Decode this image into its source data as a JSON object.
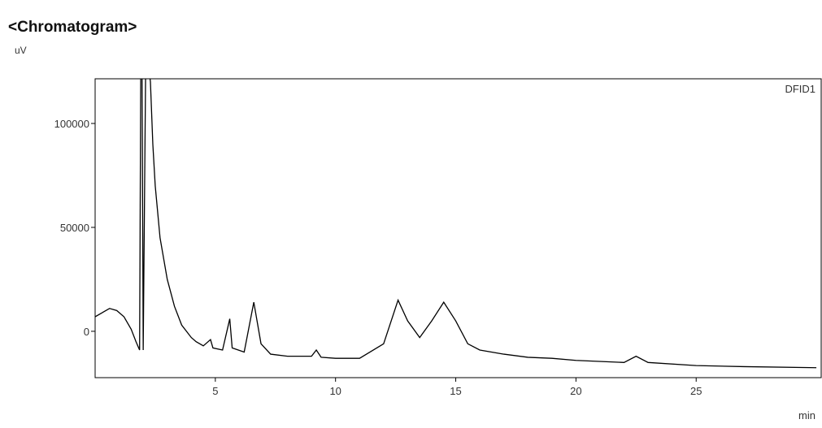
{
  "chart_data": {
    "type": "line",
    "title": "<Chromatogram>",
    "y_label": "uV",
    "x_label": "min",
    "annotation": "DFID1",
    "x": [
      0,
      0.3,
      0.6,
      0.9,
      1.2,
      1.5,
      1.7,
      1.85,
      1.9,
      1.95,
      2.0,
      2.1,
      2.2,
      2.3,
      2.4,
      2.5,
      2.7,
      3.0,
      3.3,
      3.6,
      4.0,
      4.2,
      4.5,
      4.8,
      4.9,
      5.3,
      5.6,
      5.7,
      6.2,
      6.6,
      6.9,
      7.3,
      8,
      9,
      9.2,
      9.4,
      10,
      11,
      12,
      12.6,
      13.0,
      13.5,
      14.0,
      14.5,
      15,
      15.5,
      16,
      17,
      18,
      19,
      20,
      22,
      22.5,
      23,
      25,
      27,
      30
    ],
    "series": [
      {
        "name": "DFID1",
        "color": "#000000",
        "values": [
          7000,
          9000,
          11000,
          10000,
          7000,
          1000,
          -5000,
          -9000,
          130000,
          130000,
          -9000,
          125000,
          130000,
          120000,
          90000,
          70000,
          45000,
          25000,
          12000,
          3000,
          -3000,
          -5000,
          -7000,
          -4000,
          -8000,
          -9000,
          6000,
          -8000,
          -10000,
          14000,
          -6000,
          -11000,
          -12000,
          -12000,
          -9000,
          -12500,
          -13000,
          -13000,
          -6000,
          15000,
          5000,
          -3000,
          5000,
          14000,
          5000,
          -6000,
          -9000,
          -11000,
          -12500,
          -13000,
          -14000,
          -15000,
          -12000,
          -15000,
          -16500,
          -17000,
          -17500
        ]
      }
    ],
    "xlim": [
      0,
      30.2
    ],
    "ylim": [
      -22300,
      121500
    ],
    "xticks": [
      5,
      10,
      15,
      20,
      25
    ],
    "yticks": [
      0,
      50000,
      100000
    ]
  }
}
